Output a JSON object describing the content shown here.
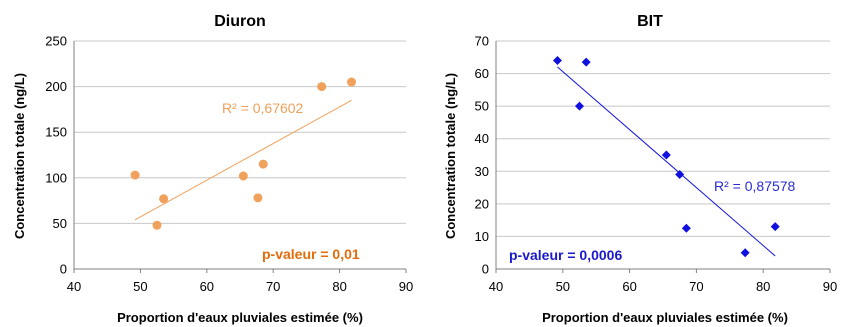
{
  "chart_data": [
    {
      "type": "scatter",
      "title": "Diuron",
      "xlabel": "Proportion d'eaux pluviales estimée (%)",
      "ylabel": "Concentration totale (ng/L)",
      "xlim": [
        40,
        90
      ],
      "ylim": [
        0,
        250
      ],
      "xticks": [
        40,
        50,
        60,
        70,
        80,
        90
      ],
      "yticks": [
        0,
        50,
        100,
        150,
        200,
        250
      ],
      "grid": "horizontal",
      "marker": "circle",
      "color": "#f0a15c",
      "points": [
        {
          "x": 49.2,
          "y": 103
        },
        {
          "x": 52.5,
          "y": 48
        },
        {
          "x": 53.5,
          "y": 77
        },
        {
          "x": 65.5,
          "y": 102
        },
        {
          "x": 67.7,
          "y": 78
        },
        {
          "x": 68.5,
          "y": 115
        },
        {
          "x": 77.3,
          "y": 200
        },
        {
          "x": 81.8,
          "y": 205
        }
      ],
      "trendline": {
        "x": [
          49.2,
          81.8
        ],
        "y": [
          54,
          185
        ]
      },
      "annotations": {
        "r2": "R² = 0,67602",
        "r2_color": "#f0a15c",
        "pvalue": "p-valeur = 0,01",
        "pvalue_color": "#e46c0a"
      }
    },
    {
      "type": "scatter",
      "title": "BIT",
      "xlabel": "Proportion d'eaux pluviales estimée (%)",
      "ylabel": "Concentration totale (ng/L)",
      "xlim": [
        40,
        90
      ],
      "ylim": [
        0,
        70
      ],
      "xticks": [
        40,
        50,
        60,
        70,
        80,
        90
      ],
      "yticks": [
        0,
        10,
        20,
        30,
        40,
        50,
        60,
        70
      ],
      "grid": "horizontal",
      "marker": "diamond",
      "color": "#1010e0",
      "points": [
        {
          "x": 49.2,
          "y": 64
        },
        {
          "x": 52.5,
          "y": 50
        },
        {
          "x": 53.5,
          "y": 63.5
        },
        {
          "x": 65.5,
          "y": 35
        },
        {
          "x": 67.5,
          "y": 29
        },
        {
          "x": 68.5,
          "y": 12.5
        },
        {
          "x": 77.3,
          "y": 5
        },
        {
          "x": 81.8,
          "y": 13
        }
      ],
      "trendline": {
        "x": [
          49.2,
          81.8
        ],
        "y": [
          62,
          4
        ]
      },
      "annotations": {
        "r2": "R² = 0,87578",
        "r2_color": "#2a2ad8",
        "pvalue": "p-valeur = 0,0006",
        "pvalue_color": "#1a1acc"
      }
    }
  ]
}
